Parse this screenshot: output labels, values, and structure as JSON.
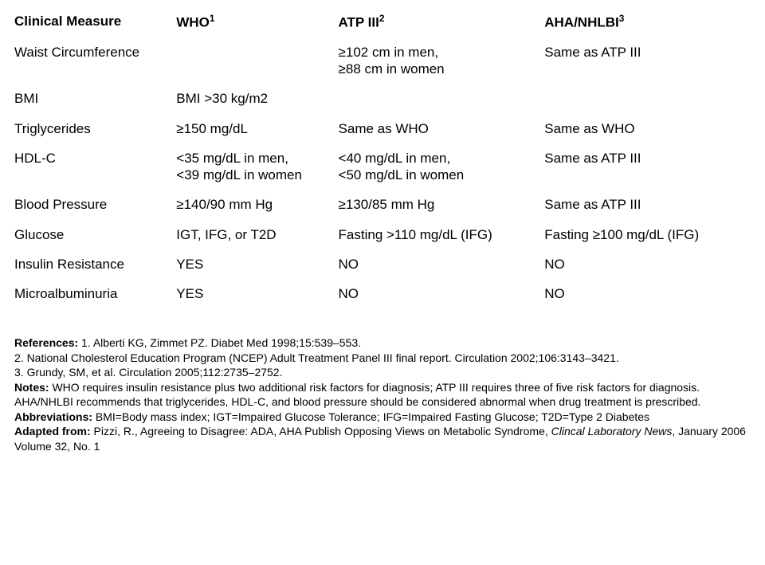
{
  "table": {
    "headers": {
      "measure": "Clinical Measure",
      "who": "WHO",
      "who_sup": "1",
      "atp": "ATP III",
      "atp_sup": "2",
      "aha": "AHA/NHLBI",
      "aha_sup": "3"
    },
    "rows": {
      "waist": {
        "measure": "Waist Circumference",
        "who": "",
        "atp_l1": "≥102 cm in men,",
        "atp_l2": "≥88 cm in women",
        "aha": "Same as ATP III"
      },
      "bmi": {
        "measure": "BMI",
        "who": "BMI >30 kg/m2",
        "atp": "",
        "aha": ""
      },
      "trig": {
        "measure": "Triglycerides",
        "who": "≥150 mg/dL",
        "atp": "Same as WHO",
        "aha": "Same as WHO"
      },
      "hdlc": {
        "measure": "HDL-C",
        "who_l1": "<35 mg/dL in men,",
        "who_l2": "<39 mg/dL in women",
        "atp_l1": "<40 mg/dL in men,",
        "atp_l2": "<50 mg/dL in women",
        "aha": "Same as ATP III"
      },
      "bp": {
        "measure": "Blood Pressure",
        "who": "≥140/90 mm Hg",
        "atp": "≥130/85 mm Hg",
        "aha": "Same as ATP III"
      },
      "glucose": {
        "measure": "Glucose",
        "who": "IGT, IFG, or T2D",
        "atp": "Fasting >110 mg/dL (IFG)",
        "aha": "Fasting ≥100 mg/dL (IFG)"
      },
      "insulin": {
        "measure": "Insulin Resistance",
        "who": "YES",
        "atp": "NO",
        "aha": "NO"
      },
      "micro": {
        "measure": "Microalbuminuria",
        "who": "YES",
        "atp": "NO",
        "aha": "NO"
      }
    }
  },
  "refs": {
    "references_label": "References:",
    "r1": " 1. Alberti KG, Zimmet PZ. Diabet Med 1998;15:539–553.",
    "r2": "2. National Cholesterol Education Program (NCEP) Adult Treatment Panel III final report. Circulation 2002;106:3143–3421.",
    "r3": "3. Grundy, SM, et al. Circulation 2005;112:2735–2752.",
    "notes_label": "Notes:",
    "notes_text": " WHO requires insulin resistance plus two additional risk factors for diagnosis; ATP III requires three of five risk factors for diagnosis. AHA/NHLBI recommends that triglycerides, HDL-C, and blood pressure should be considered abnormal when drug treatment is prescribed.",
    "abbr_label": "Abbreviations:",
    "abbr_text": " BMI=Body mass index; IGT=Impaired Glucose Tolerance; IFG=Impaired Fasting Glucose; T2D=Type 2 Diabetes",
    "adapted_label": "Adapted from:",
    "adapted_text_a": " Pizzi, R., Agreeing to Disagree: ADA, AHA Publish Opposing Views on Metabolic Syndrome, ",
    "adapted_ital": "Clincal Laboratory News",
    "adapted_text_b": ", January 2006 Volume 32, No. 1"
  }
}
